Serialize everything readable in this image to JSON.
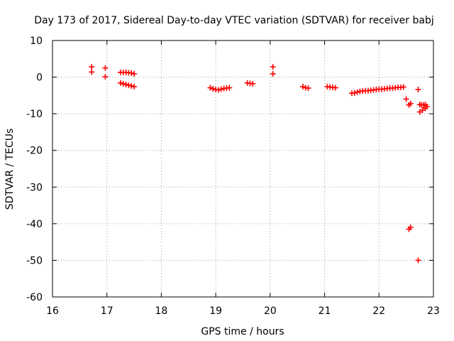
{
  "chart_data": {
    "type": "scatter",
    "title": "Day 173 of 2017, Sidereal Day-to-day VTEC variation (SDTVAR) for receiver babj",
    "xlabel": "GPS time / hours",
    "ylabel": "SDTVAR / TECUs",
    "xlim": [
      16,
      23
    ],
    "ylim": [
      -60,
      10
    ],
    "xticks": [
      16,
      17,
      18,
      19,
      20,
      21,
      22,
      23
    ],
    "yticks": [
      10,
      0,
      -10,
      -20,
      -30,
      -40,
      -50,
      -60
    ],
    "grid": true,
    "marker": "+",
    "series_color": "#ff0000",
    "series": [
      {
        "name": "SDTVAR",
        "points": [
          [
            16.72,
            2.8
          ],
          [
            16.72,
            1.4
          ],
          [
            16.97,
            2.5
          ],
          [
            16.97,
            0.1
          ],
          [
            17.25,
            1.3
          ],
          [
            17.3,
            1.3
          ],
          [
            17.35,
            1.3
          ],
          [
            17.4,
            1.2
          ],
          [
            17.45,
            1.1
          ],
          [
            17.5,
            0.9
          ],
          [
            17.25,
            -1.6
          ],
          [
            17.3,
            -1.8
          ],
          [
            17.35,
            -2.0
          ],
          [
            17.4,
            -2.2
          ],
          [
            17.45,
            -2.4
          ],
          [
            17.5,
            -2.6
          ],
          [
            18.9,
            -2.9
          ],
          [
            18.95,
            -3.2
          ],
          [
            19.0,
            -3.4
          ],
          [
            19.05,
            -3.5
          ],
          [
            19.1,
            -3.3
          ],
          [
            19.15,
            -3.1
          ],
          [
            19.2,
            -3.0
          ],
          [
            19.25,
            -2.9
          ],
          [
            19.58,
            -1.6
          ],
          [
            19.63,
            -1.7
          ],
          [
            19.68,
            -1.8
          ],
          [
            20.05,
            2.8
          ],
          [
            20.05,
            0.9
          ],
          [
            20.6,
            -2.6
          ],
          [
            20.65,
            -2.9
          ],
          [
            20.7,
            -3.0
          ],
          [
            21.05,
            -2.6
          ],
          [
            21.1,
            -2.7
          ],
          [
            21.15,
            -2.8
          ],
          [
            21.2,
            -2.9
          ],
          [
            21.5,
            -4.4
          ],
          [
            21.55,
            -4.3
          ],
          [
            21.6,
            -4.1
          ],
          [
            21.65,
            -3.9
          ],
          [
            21.7,
            -3.8
          ],
          [
            21.75,
            -3.7
          ],
          [
            21.8,
            -3.7
          ],
          [
            21.85,
            -3.6
          ],
          [
            21.9,
            -3.5
          ],
          [
            21.95,
            -3.4
          ],
          [
            22.0,
            -3.3
          ],
          [
            22.05,
            -3.3
          ],
          [
            22.1,
            -3.2
          ],
          [
            22.15,
            -3.1
          ],
          [
            22.2,
            -3.0
          ],
          [
            22.25,
            -3.0
          ],
          [
            22.3,
            -2.9
          ],
          [
            22.35,
            -2.8
          ],
          [
            22.4,
            -2.8
          ],
          [
            22.45,
            -2.7
          ],
          [
            22.5,
            -6.0
          ],
          [
            22.55,
            -7.6
          ],
          [
            22.58,
            -7.2
          ],
          [
            22.55,
            -41.5
          ],
          [
            22.58,
            -41.0
          ],
          [
            22.72,
            -3.4
          ],
          [
            22.72,
            -50.0
          ],
          [
            22.75,
            -7.5
          ],
          [
            22.78,
            -7.6
          ],
          [
            22.82,
            -7.6
          ],
          [
            22.85,
            -7.5
          ],
          [
            22.75,
            -9.5
          ],
          [
            22.8,
            -9.0
          ],
          [
            22.85,
            -8.5
          ],
          [
            22.88,
            -8.0
          ]
        ]
      }
    ]
  }
}
